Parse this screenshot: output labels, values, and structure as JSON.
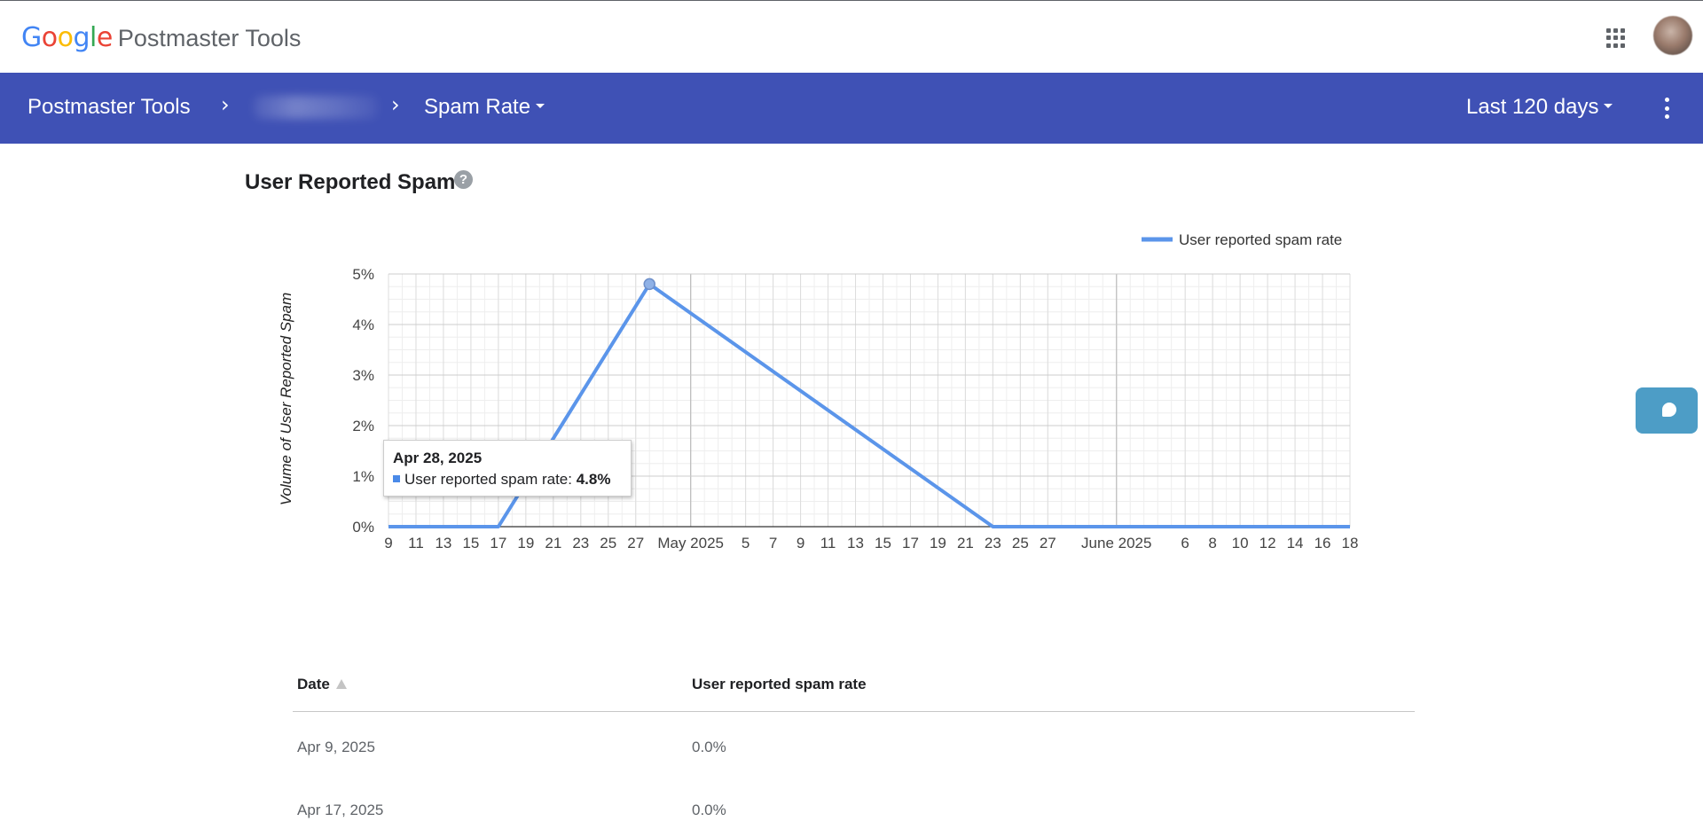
{
  "app": {
    "brand": {
      "g1": "G",
      "o1": "o",
      "o2": "o",
      "g2": "g",
      "l": "l",
      "e": "e",
      "product": "Postmaster Tools"
    },
    "brand_colors": [
      "#4285F4",
      "#EA4335",
      "#FBBC05",
      "#4285F4",
      "#34A853",
      "#EA4335"
    ],
    "apps_icon": "apps-grid-icon",
    "avatar_icon": "account-avatar"
  },
  "nav": {
    "root_label": "Postmaster Tools",
    "chevron": "›",
    "page_label": "Spam Rate",
    "range_label": "Last 120 days",
    "more_icon": "more-vert-icon",
    "bg_color": "#3f51b5"
  },
  "section": {
    "title": "User Reported Spam",
    "help": "?"
  },
  "chart_data": {
    "type": "line",
    "title": "",
    "ylabel": "Volume of User Reported Spam",
    "xlabel": "",
    "y_ticks": [
      "0%",
      "1%",
      "2%",
      "3%",
      "4%",
      "5%"
    ],
    "ylim": [
      0,
      5
    ],
    "x_range": [
      "2025-04-09",
      "2025-06-18"
    ],
    "x_tick_labels": [
      "9",
      "11",
      "13",
      "15",
      "17",
      "19",
      "21",
      "23",
      "25",
      "27",
      "May 2025",
      "5",
      "7",
      "9",
      "11",
      "13",
      "15",
      "17",
      "19",
      "21",
      "23",
      "25",
      "27",
      "June 2025",
      "6",
      "8",
      "10",
      "12",
      "14",
      "16",
      "18"
    ],
    "x_tick_dates": [
      "2025-04-09",
      "2025-04-11",
      "2025-04-13",
      "2025-04-15",
      "2025-04-17",
      "2025-04-19",
      "2025-04-21",
      "2025-04-23",
      "2025-04-25",
      "2025-04-27",
      "2025-05-01",
      "2025-05-05",
      "2025-05-07",
      "2025-05-09",
      "2025-05-11",
      "2025-05-13",
      "2025-05-15",
      "2025-05-17",
      "2025-05-19",
      "2025-05-21",
      "2025-05-23",
      "2025-05-25",
      "2025-05-27",
      "2025-06-01",
      "2025-06-06",
      "2025-06-08",
      "2025-06-10",
      "2025-06-12",
      "2025-06-14",
      "2025-06-16",
      "2025-06-18"
    ],
    "major_gridlines": [
      "2025-05-01",
      "2025-06-01"
    ],
    "legend_position": "top-right",
    "grid": true,
    "series": [
      {
        "name": "User reported spam rate",
        "color": "#5b95ea",
        "points": [
          {
            "x": "2025-04-09",
            "y": 0.0
          },
          {
            "x": "2025-04-17",
            "y": 0.0
          },
          {
            "x": "2025-04-28",
            "y": 4.8
          },
          {
            "x": "2025-05-23",
            "y": 0.0
          },
          {
            "x": "2025-06-18",
            "y": 0.0
          }
        ]
      }
    ],
    "highlight": {
      "x": "2025-04-28",
      "y": 4.8
    }
  },
  "tooltip": {
    "date": "Apr 28, 2025",
    "label": "User reported spam rate: ",
    "value": "4.8%"
  },
  "table": {
    "headers": {
      "date": "Date",
      "rate": "User reported spam rate"
    },
    "sort_icon": "sort-ascending-icon",
    "rows": [
      {
        "date": "Apr 9, 2025",
        "rate": "0.0%"
      },
      {
        "date": "Apr 17, 2025",
        "rate": "0.0%"
      }
    ]
  },
  "feedback": {
    "icon": "feedback-bubble-icon",
    "color": "#4d9dc6"
  }
}
